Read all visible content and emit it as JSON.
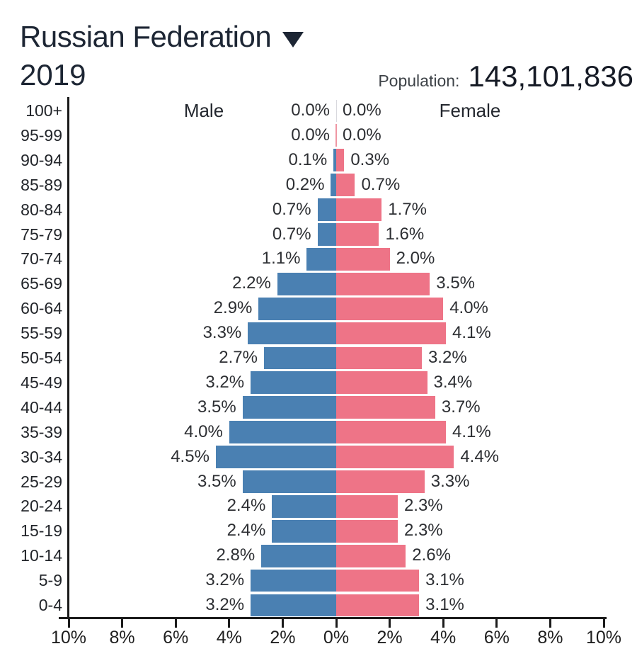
{
  "header": {
    "country": "Russian Federation",
    "dropdown_icon": "caret-down",
    "year": "2019",
    "population_label": "Population:",
    "population_value": "143,101,836"
  },
  "chart_data": {
    "type": "bar",
    "variant": "population-pyramid",
    "title": "Russian Federation 2019 population pyramid",
    "male_label": "Male",
    "female_label": "Female",
    "unit": "%",
    "xlim": [
      0,
      10
    ],
    "x_tick_labels": [
      "10%",
      "8%",
      "6%",
      "4%",
      "2%",
      "0%",
      "2%",
      "4%",
      "6%",
      "8%",
      "10%"
    ],
    "categories": [
      "100+",
      "95-99",
      "90-94",
      "85-89",
      "80-84",
      "75-79",
      "70-74",
      "65-69",
      "60-64",
      "55-59",
      "50-54",
      "45-49",
      "40-44",
      "35-39",
      "30-34",
      "25-29",
      "20-24",
      "15-19",
      "10-14",
      "5-9",
      "0-4"
    ],
    "series": [
      {
        "name": "Male",
        "side": "left",
        "color": "#4A80B2",
        "values": [
          0.0,
          0.0,
          0.1,
          0.2,
          0.7,
          0.7,
          1.1,
          2.2,
          2.9,
          3.3,
          2.7,
          3.2,
          3.5,
          4.0,
          4.5,
          3.5,
          2.4,
          2.4,
          2.8,
          3.2,
          3.2
        ]
      },
      {
        "name": "Female",
        "side": "right",
        "color": "#EE7487",
        "values": [
          0.0,
          0.0,
          0.3,
          0.7,
          1.7,
          1.6,
          2.0,
          3.5,
          4.0,
          4.1,
          3.2,
          3.4,
          3.7,
          4.1,
          4.4,
          3.3,
          2.3,
          2.3,
          2.6,
          3.1,
          3.1
        ]
      }
    ],
    "zero_value_line_colors": [
      "#d9d9de",
      "#ef96a3"
    ],
    "axis_color": "#1b1b1b",
    "grid": false,
    "legend_position": "inside-top"
  }
}
